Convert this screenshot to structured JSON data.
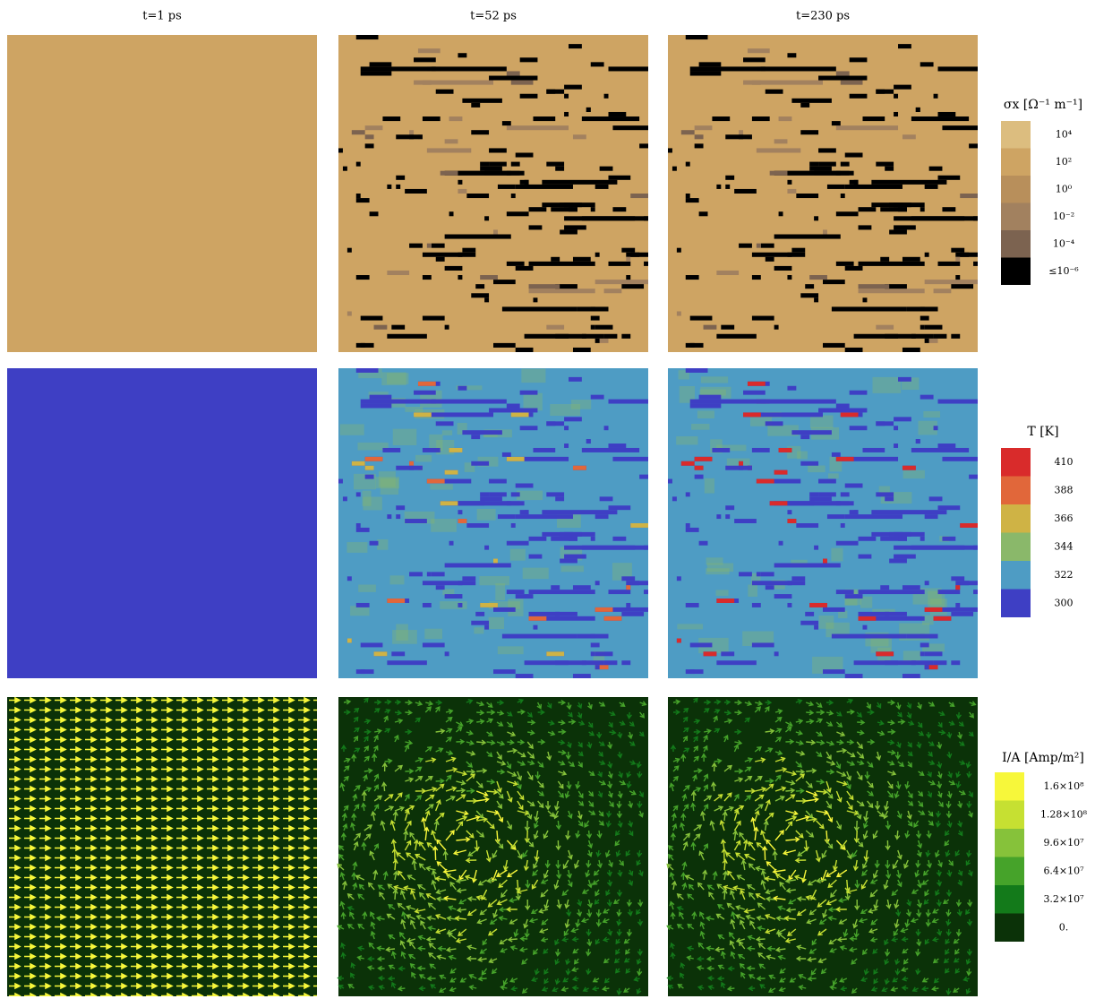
{
  "columns": [
    "t=1 ps",
    "t=52 ps",
    "t=230 ps"
  ],
  "legends": [
    {
      "title": "σx [Ω⁻¹ m⁻¹]",
      "entries": [
        {
          "label": "10⁴",
          "color": "#dcbd7f"
        },
        {
          "label": "10²",
          "color": "#cea463"
        },
        {
          "label": "10⁰",
          "color": "#b88f5b"
        },
        {
          "label": "10⁻²",
          "color": "#a2815f"
        },
        {
          "label": "10⁻⁴",
          "color": "#7c6350"
        },
        {
          "label": "≤10⁻⁶",
          "color": "#000000"
        }
      ]
    },
    {
      "title": "T [K]",
      "entries": [
        {
          "label": "410",
          "color": "#d92b2b"
        },
        {
          "label": "388",
          "color": "#e1673a"
        },
        {
          "label": "366",
          "color": "#cfb345"
        },
        {
          "label": "344",
          "color": "#8ab86a"
        },
        {
          "label": "322",
          "color": "#4e9cc4"
        },
        {
          "label": "300",
          "color": "#3e3fc4"
        }
      ]
    },
    {
      "title": "I/A [Amp/m²]",
      "entries": [
        {
          "label": "1.6×10⁸",
          "color": "#f7f73a"
        },
        {
          "label": "1.28×10⁸",
          "color": "#c6e032"
        },
        {
          "label": "9.6×10⁷",
          "color": "#86c23a"
        },
        {
          "label": "6.4×10⁷",
          "color": "#46a32a"
        },
        {
          "label": "3.2×10⁷",
          "color": "#137a1a"
        },
        {
          "label": "0.",
          "color": "#0b3208"
        }
      ]
    }
  ]
}
